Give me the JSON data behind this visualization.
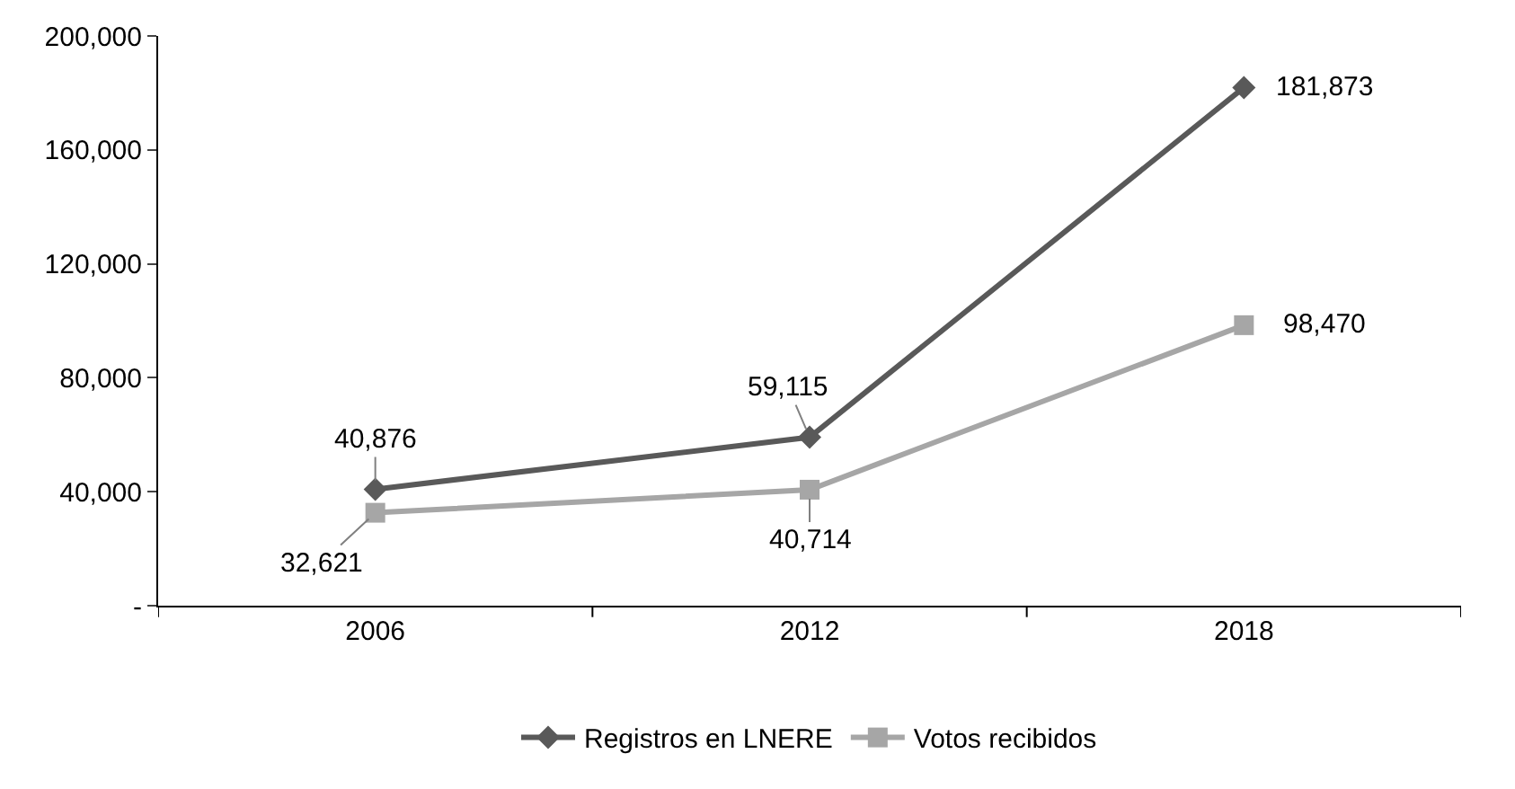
{
  "chart_data": {
    "type": "line",
    "categories": [
      "2006",
      "2012",
      "2018"
    ],
    "series": [
      {
        "name": "Registros en LNERE",
        "color": "#595959",
        "marker": "diamond",
        "values": [
          40876,
          59115,
          181873
        ],
        "value_labels": [
          "40,876",
          "59,115",
          "181,873"
        ]
      },
      {
        "name": "Votos recibidos",
        "color": "#a6a6a6",
        "marker": "square",
        "values": [
          32621,
          40714,
          98470
        ],
        "value_labels": [
          "32,621",
          "40,714",
          "98,470"
        ]
      }
    ],
    "ylim": [
      0,
      200000
    ],
    "yticks": [
      {
        "value": 0,
        "label": "-"
      },
      {
        "value": 40000,
        "label": "40,000"
      },
      {
        "value": 80000,
        "label": "80,000"
      },
      {
        "value": 120000,
        "label": "120,000"
      },
      {
        "value": 160000,
        "label": "160,000"
      },
      {
        "value": 200000,
        "label": "200,000"
      }
    ],
    "grid": false,
    "legend": "bottom",
    "line_style": "solid"
  }
}
